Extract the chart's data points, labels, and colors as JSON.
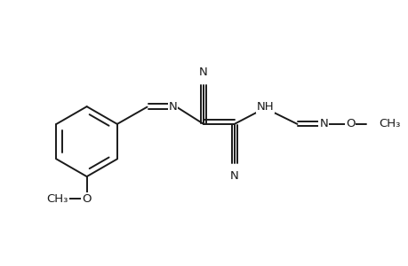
{
  "bg": "#ffffff",
  "lc": "#1a1a1a",
  "lw": 1.4,
  "fs": 9.5,
  "figsize": [
    4.6,
    3.0
  ],
  "dpi": 100,
  "xlim": [
    0,
    9.5
  ],
  "ylim": [
    -1.8,
    3.8
  ]
}
